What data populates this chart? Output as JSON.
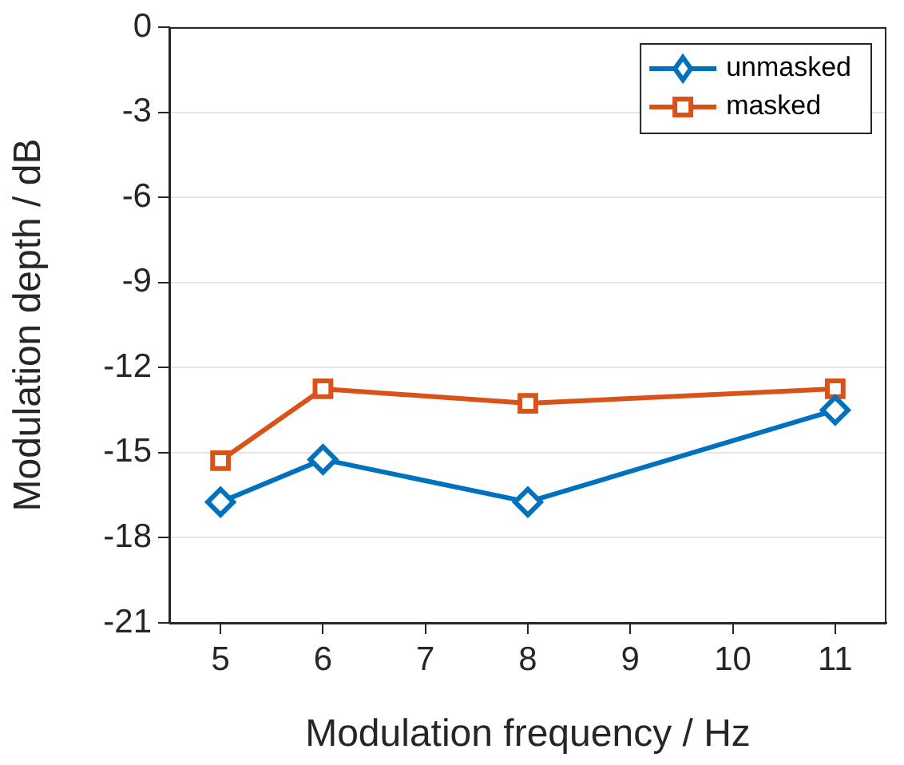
{
  "chart_data": {
    "type": "line",
    "xlabel": "Modulation frequency / Hz",
    "ylabel": "Modulation depth / dB",
    "x": [
      5,
      6,
      8,
      11
    ],
    "series": [
      {
        "name": "unmasked",
        "color": "#0072bd",
        "marker": "diamond",
        "values": [
          -16.74,
          -15.24,
          -16.74,
          -13.5
        ]
      },
      {
        "name": "masked",
        "color": "#d95319",
        "marker": "square",
        "values": [
          -15.28,
          -12.75,
          -13.26,
          -12.75
        ]
      }
    ],
    "xlim": [
      4.5,
      11.5
    ],
    "xticks": [
      5,
      6,
      7,
      8,
      9,
      10,
      11
    ],
    "ylim": [
      -21,
      0
    ],
    "yticks": [
      -21,
      -18,
      -15,
      -12,
      -9,
      -6,
      -3,
      0
    ],
    "grid": "y",
    "legend": "top right",
    "line_style": "solid"
  }
}
